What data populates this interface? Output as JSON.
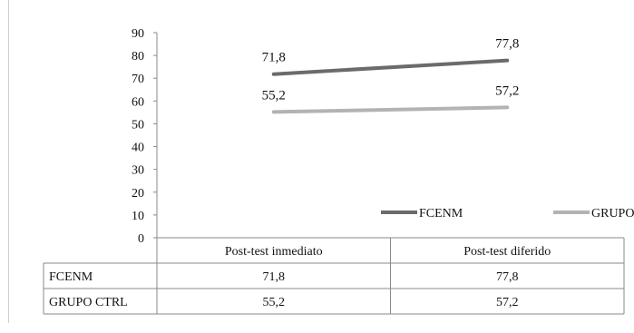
{
  "chart_data": {
    "type": "line",
    "categories": [
      "Post-test inmediato",
      "Post-test diferido"
    ],
    "series": [
      {
        "name": "FCENM",
        "values": [
          71.8,
          77.8
        ],
        "labels": [
          "71,8",
          "77,8"
        ],
        "color": "#6b6b6b"
      },
      {
        "name": "GRUPO CTRL",
        "values": [
          55.2,
          57.2
        ],
        "labels": [
          "55,2",
          "57,2"
        ],
        "color": "#b3b3b3"
      }
    ],
    "yticks": [
      0,
      10,
      20,
      30,
      40,
      50,
      60,
      70,
      80,
      90
    ],
    "ylim": [
      0,
      90
    ],
    "title": "",
    "xlabel": "",
    "ylabel": "",
    "legend_position": "bottom-right",
    "grid": false,
    "data_table": true
  }
}
